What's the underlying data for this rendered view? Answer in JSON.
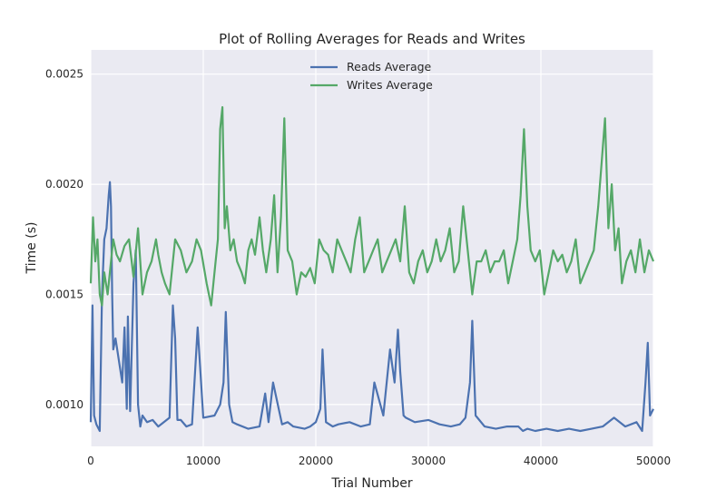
{
  "chart_data": {
    "type": "line",
    "title": "Plot of Rolling Averages for Reads and Writes",
    "xlabel": "Trial Number",
    "ylabel": "Time (s)",
    "xlim": [
      0,
      50000
    ],
    "ylim": [
      0.00081,
      0.00261
    ],
    "x_ticks": [
      0,
      10000,
      20000,
      30000,
      40000,
      50000
    ],
    "x_tick_labels": [
      "0",
      "10000",
      "20000",
      "30000",
      "40000",
      "50000"
    ],
    "y_ticks": [
      0.001,
      0.0015,
      0.002,
      0.0025
    ],
    "y_tick_labels": [
      "0.0010",
      "0.0015",
      "0.0020",
      "0.0025"
    ],
    "grid": true,
    "legend_position": "top-center",
    "background": "#eaeaf2",
    "series": [
      {
        "name": "Reads Average",
        "color": "#4c72b0",
        "x": [
          0,
          150,
          300,
          500,
          800,
          1000,
          1200,
          1400,
          1600,
          1700,
          1800,
          1900,
          2000,
          2200,
          2500,
          2800,
          3000,
          3200,
          3300,
          3500,
          3800,
          4000,
          4200,
          4400,
          4600,
          5000,
          5500,
          6000,
          6500,
          7000,
          7300,
          7500,
          7700,
          8000,
          8500,
          9000,
          9500,
          10000,
          11000,
          11500,
          11800,
          12000,
          12300,
          12600,
          13000,
          14000,
          15000,
          15500,
          15800,
          16200,
          17000,
          17500,
          18000,
          19000,
          19500,
          20000,
          20400,
          20600,
          20900,
          21500,
          22000,
          23000,
          24000,
          24800,
          25200,
          26000,
          26600,
          27000,
          27300,
          27500,
          27800,
          28000,
          28800,
          30000,
          31000,
          32000,
          32800,
          33300,
          33700,
          33900,
          34200,
          35000,
          36000,
          37000,
          38000,
          38400,
          38800,
          39500,
          40500,
          41500,
          42500,
          43500,
          44500,
          45500,
          46500,
          47500,
          48500,
          49000,
          49300,
          49500,
          49700,
          50000
        ],
        "values": [
          0.00092,
          0.00145,
          0.00095,
          0.00091,
          0.00088,
          0.0015,
          0.00175,
          0.0018,
          0.00195,
          0.00201,
          0.0019,
          0.0015,
          0.00125,
          0.0013,
          0.0012,
          0.0011,
          0.00135,
          0.00098,
          0.0014,
          0.00097,
          0.00155,
          0.0017,
          0.001,
          0.0009,
          0.00095,
          0.00092,
          0.00093,
          0.0009,
          0.00092,
          0.00094,
          0.00145,
          0.0013,
          0.00093,
          0.00093,
          0.0009,
          0.00091,
          0.00135,
          0.00094,
          0.00095,
          0.001,
          0.0011,
          0.00142,
          0.001,
          0.00092,
          0.00091,
          0.00089,
          0.0009,
          0.00105,
          0.00092,
          0.0011,
          0.00091,
          0.00092,
          0.0009,
          0.00089,
          0.0009,
          0.00092,
          0.00098,
          0.00125,
          0.00092,
          0.0009,
          0.00091,
          0.00092,
          0.0009,
          0.00091,
          0.0011,
          0.00095,
          0.00125,
          0.0011,
          0.00134,
          0.00115,
          0.00095,
          0.00094,
          0.00092,
          0.00093,
          0.00091,
          0.0009,
          0.00091,
          0.00094,
          0.0011,
          0.00138,
          0.00095,
          0.0009,
          0.00089,
          0.0009,
          0.0009,
          0.00088,
          0.00089,
          0.00088,
          0.00089,
          0.00088,
          0.00089,
          0.00088,
          0.00089,
          0.0009,
          0.00094,
          0.0009,
          0.00092,
          0.00088,
          0.0011,
          0.00128,
          0.00095,
          0.00098
        ]
      },
      {
        "name": "Writes Average",
        "color": "#55a868",
        "x": [
          0,
          200,
          400,
          600,
          800,
          1000,
          1200,
          1500,
          1800,
          2000,
          2300,
          2600,
          3000,
          3400,
          3800,
          4200,
          4600,
          5000,
          5400,
          5800,
          6000,
          6300,
          6600,
          7000,
          7500,
          8000,
          8500,
          9000,
          9400,
          9800,
          10300,
          10700,
          11100,
          11300,
          11500,
          11700,
          11900,
          12100,
          12400,
          12700,
          13000,
          13400,
          13700,
          14000,
          14300,
          14600,
          15000,
          15300,
          15600,
          16000,
          16300,
          16600,
          16900,
          17200,
          17500,
          17900,
          18300,
          18700,
          19100,
          19500,
          19900,
          20300,
          20700,
          21100,
          21500,
          21900,
          22300,
          22700,
          23100,
          23500,
          23900,
          24300,
          24700,
          25100,
          25500,
          25900,
          26300,
          26700,
          27100,
          27500,
          27900,
          28300,
          28700,
          29100,
          29500,
          29900,
          30300,
          30700,
          31100,
          31500,
          31900,
          32300,
          32700,
          33100,
          33500,
          33900,
          34300,
          34700,
          35100,
          35500,
          35900,
          36300,
          36700,
          37100,
          37500,
          37900,
          38200,
          38500,
          38800,
          39100,
          39500,
          39900,
          40300,
          40700,
          41100,
          41500,
          41900,
          42300,
          42700,
          43100,
          43500,
          43900,
          44300,
          44700,
          45100,
          45400,
          45700,
          46000,
          46300,
          46600,
          46900,
          47200,
          47600,
          48000,
          48400,
          48800,
          49200,
          49600,
          50000
        ],
        "values": [
          0.00155,
          0.00185,
          0.00165,
          0.00175,
          0.0015,
          0.00145,
          0.0016,
          0.0015,
          0.00165,
          0.00175,
          0.00168,
          0.00165,
          0.00172,
          0.00175,
          0.00158,
          0.0018,
          0.0015,
          0.0016,
          0.00165,
          0.00175,
          0.00168,
          0.0016,
          0.00155,
          0.0015,
          0.00175,
          0.0017,
          0.0016,
          0.00165,
          0.00175,
          0.0017,
          0.00155,
          0.00145,
          0.00165,
          0.00175,
          0.00225,
          0.00235,
          0.0018,
          0.0019,
          0.0017,
          0.00175,
          0.00165,
          0.0016,
          0.00155,
          0.0017,
          0.00175,
          0.00168,
          0.00185,
          0.0017,
          0.0016,
          0.00175,
          0.00195,
          0.0016,
          0.00185,
          0.0023,
          0.0017,
          0.00165,
          0.0015,
          0.0016,
          0.00158,
          0.00162,
          0.00155,
          0.00175,
          0.0017,
          0.00168,
          0.0016,
          0.00175,
          0.0017,
          0.00165,
          0.0016,
          0.00175,
          0.00185,
          0.0016,
          0.00165,
          0.0017,
          0.00175,
          0.0016,
          0.00165,
          0.0017,
          0.00175,
          0.00165,
          0.0019,
          0.0016,
          0.00155,
          0.00165,
          0.0017,
          0.0016,
          0.00165,
          0.00175,
          0.00165,
          0.0017,
          0.0018,
          0.0016,
          0.00165,
          0.0019,
          0.0017,
          0.0015,
          0.00165,
          0.00165,
          0.0017,
          0.0016,
          0.00165,
          0.00165,
          0.0017,
          0.00155,
          0.00165,
          0.00175,
          0.00195,
          0.00225,
          0.0019,
          0.0017,
          0.00165,
          0.0017,
          0.0015,
          0.0016,
          0.0017,
          0.00165,
          0.00168,
          0.0016,
          0.00165,
          0.00175,
          0.00155,
          0.0016,
          0.00165,
          0.0017,
          0.0019,
          0.0021,
          0.0023,
          0.0018,
          0.002,
          0.0017,
          0.0018,
          0.00155,
          0.00165,
          0.0017,
          0.0016,
          0.00175,
          0.0016,
          0.0017,
          0.00165
        ]
      }
    ]
  }
}
